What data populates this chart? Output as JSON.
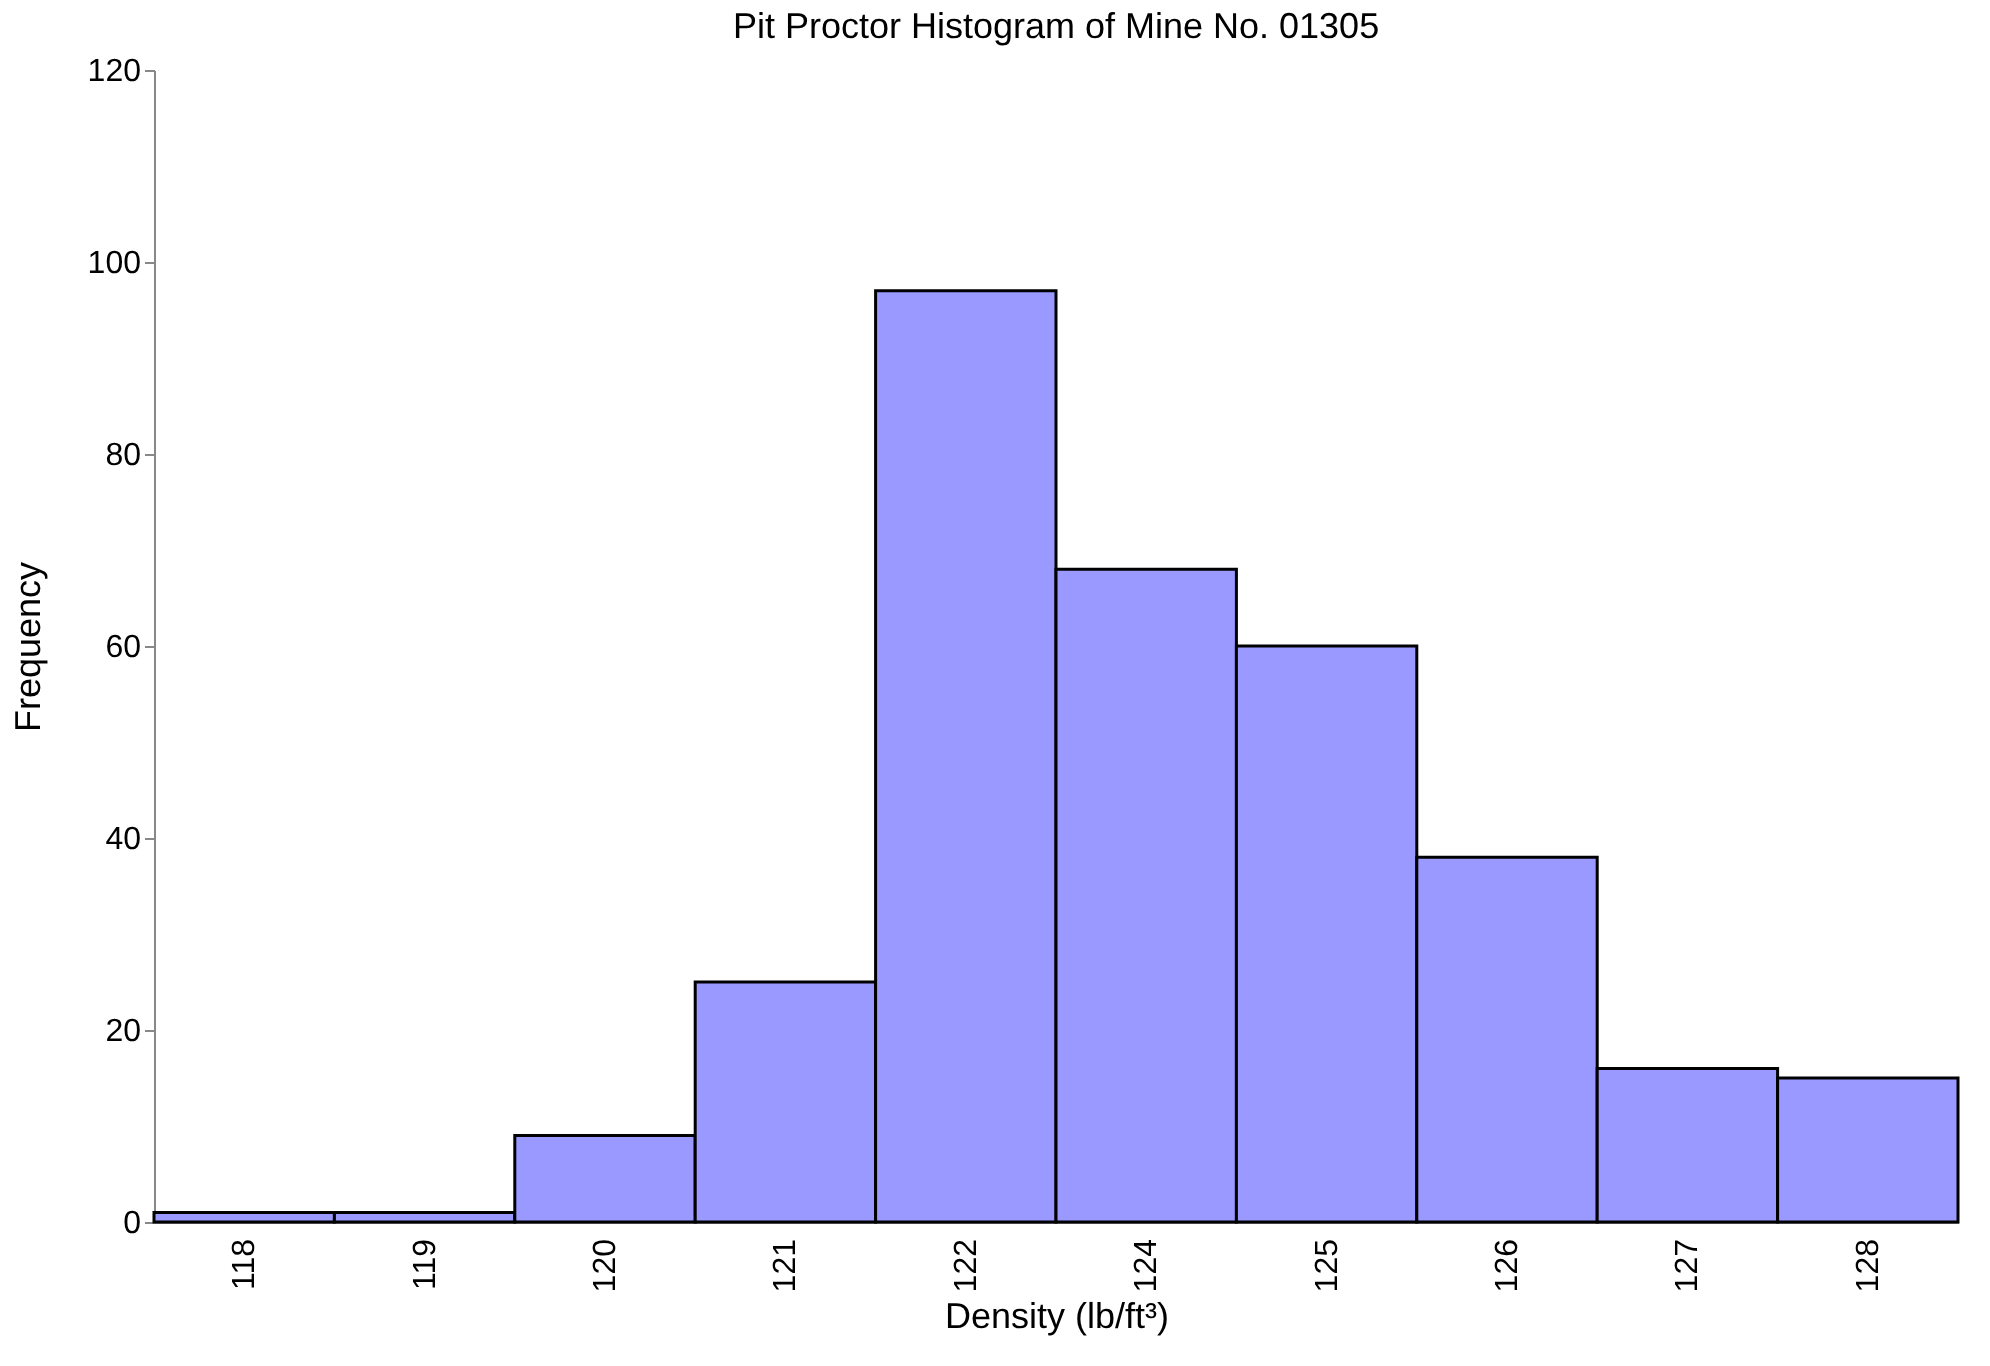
{
  "chart_data": {
    "type": "bar",
    "title": "Pit Proctor Histogram of Mine No. 01305",
    "xlabel": "Density (lb/ft³)",
    "ylabel": "Frequency",
    "categories": [
      "118",
      "119",
      "120",
      "121",
      "122",
      "124",
      "125",
      "126",
      "127",
      "128"
    ],
    "values": [
      1,
      1,
      9,
      25,
      97,
      68,
      60,
      38,
      16,
      15
    ],
    "color": "#9999ff",
    "ylim": [
      0,
      120
    ],
    "yticks": [
      0,
      20,
      40,
      60,
      80,
      100,
      120
    ],
    "grid": false
  }
}
